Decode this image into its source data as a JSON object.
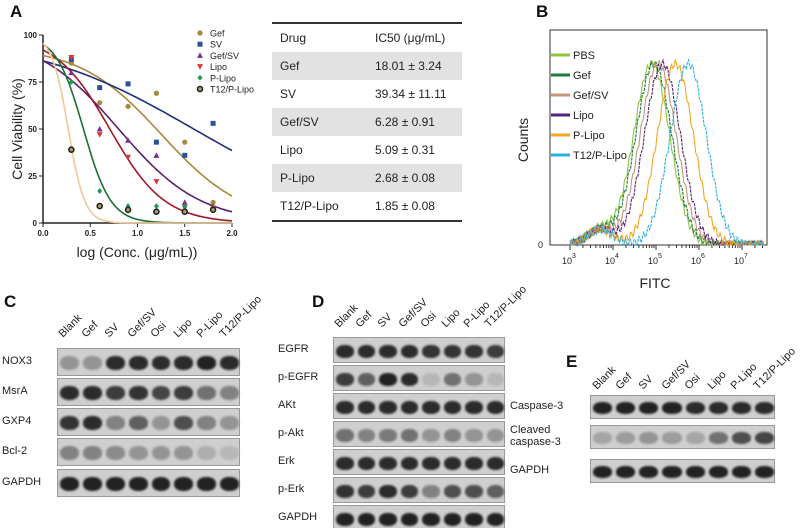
{
  "panels": {
    "a": "A",
    "b": "B",
    "c": "C",
    "d": "D",
    "e": "E"
  },
  "chart_data": [
    {
      "type": "scatter",
      "title": "",
      "xlabel": "log (Conc. (μg/mL))",
      "ylabel": "Cell Viability (%)",
      "xlim": [
        0,
        2
      ],
      "ylim": [
        0,
        100
      ],
      "xticks": [
        "0.0",
        "0.5",
        "1.0",
        "1.5",
        "2.0"
      ],
      "yticks": [
        "0",
        "25",
        "50",
        "75",
        "100"
      ],
      "legend": "top-right",
      "x": [
        0.3,
        0.6,
        0.9,
        1.2,
        1.5,
        1.8
      ],
      "series": [
        {
          "name": "Gef",
          "color": "#a8883a",
          "marker": "circle",
          "values": [
            85,
            64,
            62,
            69,
            43,
            11
          ],
          "fit": {
            "top": 94,
            "logIC50": 1.255,
            "hill": 1.0
          }
        },
        {
          "name": "SV",
          "color": "#2c4fa0",
          "curve": "#1f2f7a",
          "marker": "square",
          "values": [
            87,
            72,
            74,
            43,
            36,
            53
          ],
          "fit": {
            "top": 100,
            "logIC50": 1.595,
            "hill": 0.5
          }
        },
        {
          "name": "Gef/SV",
          "color": "#7a2f8a",
          "curve": "#5a2070",
          "marker": "triangle",
          "values": [
            80,
            50,
            44,
            36,
            11,
            9
          ],
          "fit": {
            "top": 100,
            "logIC50": 0.8,
            "hill": 1.0
          }
        },
        {
          "name": "Lipo",
          "color": "#d8353a",
          "curve": "#a01828",
          "marker": "triangle-down",
          "values": [
            88,
            47,
            35,
            22,
            8,
            8
          ],
          "fit": {
            "top": 100,
            "logIC50": 0.707,
            "hill": 1.5
          }
        },
        {
          "name": "P-Lipo",
          "color": "#1f9a50",
          "curve": "#1a7035",
          "marker": "diamond",
          "values": [
            75,
            17,
            9,
            9,
            9,
            8
          ],
          "fit": {
            "top": 100,
            "logIC50": 0.428,
            "hill": 3
          }
        },
        {
          "name": "T12/P-Lipo",
          "color": "#222222",
          "curve": "#f2c89a",
          "marker": "ring",
          "values": [
            39,
            9,
            7,
            6,
            6,
            7
          ],
          "fit": {
            "top": 100,
            "logIC50": 0.267,
            "hill": 5
          }
        }
      ]
    },
    {
      "type": "table",
      "headers": [
        "Drug",
        "IC50  (μg/mL)"
      ],
      "rows": [
        [
          "Gef",
          "18.01 ± 3.24"
        ],
        [
          "SV",
          "39.34 ± 11.11"
        ],
        [
          "Gef/SV",
          "6.28 ± 0.91"
        ],
        [
          "Lipo",
          "5.09 ± 0.31"
        ],
        [
          "P-Lipo",
          "2.68 ± 0.08"
        ],
        [
          "T12/P-Lipo",
          "1.85 ± 0.08"
        ]
      ]
    },
    {
      "type": "line",
      "title": "",
      "xlabel": "FITC",
      "ylabel": "Counts",
      "xscale": "log",
      "xticks": [
        "10",
        "10",
        "10",
        "10",
        "10"
      ],
      "xtick_exp": [
        "3",
        "4",
        "5",
        "6",
        "7"
      ],
      "y_zero": "0",
      "legend": "top-left",
      "series": [
        {
          "name": "PBS",
          "color": "#8cc63f",
          "peak_log10": 4.9
        },
        {
          "name": "Gef",
          "color": "#1e7a3e",
          "peak_log10": 4.95
        },
        {
          "name": "Gef/SV",
          "color": "#c4957a",
          "peak_log10": 5.05
        },
        {
          "name": "Lipo",
          "color": "#51237f",
          "peak_log10": 5.15
        },
        {
          "name": "P-Lipo",
          "color": "#f5a623",
          "peak_log10": 5.45
        },
        {
          "name": "T12/P-Lipo",
          "color": "#2aaee0",
          "peak_log10": 5.75
        }
      ]
    }
  ],
  "blots": {
    "c": {
      "lanes": [
        "Blank",
        "Gef",
        "SV",
        "Gef/SV",
        "Osi",
        "Lipo",
        "P-Lipo",
        "T12/P-Lipo"
      ],
      "rows": [
        {
          "label": "NOX3",
          "levels": [
            0.3,
            0.3,
            0.9,
            0.9,
            0.9,
            0.9,
            0.95,
            0.9
          ]
        },
        {
          "label": "MsrA",
          "levels": [
            0.9,
            0.9,
            0.8,
            0.85,
            0.75,
            0.8,
            0.5,
            0.4
          ]
        },
        {
          "label": "GXP4",
          "levels": [
            0.85,
            0.9,
            0.4,
            0.6,
            0.3,
            0.7,
            0.4,
            0.3
          ]
        },
        {
          "label": "Bcl-2",
          "levels": [
            0.4,
            0.4,
            0.35,
            0.3,
            0.3,
            0.3,
            0.15,
            0.1
          ]
        },
        {
          "label": "GAPDH",
          "levels": [
            0.95,
            0.95,
            0.95,
            0.95,
            0.95,
            0.95,
            0.95,
            0.95
          ]
        }
      ]
    },
    "d": {
      "lanes": [
        "Blank",
        "Gef",
        "SV",
        "Gef/SV",
        "Osi",
        "Lipo",
        "P-Lipo",
        "T12/P-Lipo"
      ],
      "rows": [
        {
          "label": "EGFR",
          "levels": [
            0.9,
            0.9,
            0.9,
            0.9,
            0.85,
            0.85,
            0.85,
            0.8
          ]
        },
        {
          "label": "p-EGFR",
          "levels": [
            0.8,
            0.6,
            0.95,
            0.9,
            0.1,
            0.5,
            0.3,
            0.1
          ]
        },
        {
          "label": "AKt",
          "levels": [
            0.9,
            0.9,
            0.9,
            0.9,
            0.9,
            0.9,
            0.9,
            0.9
          ]
        },
        {
          "label": "p-Akt",
          "levels": [
            0.5,
            0.4,
            0.45,
            0.5,
            0.3,
            0.4,
            0.3,
            0.3
          ]
        },
        {
          "label": "Erk",
          "levels": [
            0.9,
            0.9,
            0.9,
            0.9,
            0.9,
            0.9,
            0.9,
            0.9
          ]
        },
        {
          "label": "p-Erk",
          "levels": [
            0.85,
            0.8,
            0.9,
            0.8,
            0.4,
            0.7,
            0.7,
            0.6
          ]
        },
        {
          "label": "GAPDH",
          "levels": [
            0.95,
            0.95,
            0.95,
            0.95,
            0.95,
            0.95,
            0.95,
            0.95
          ]
        }
      ]
    },
    "e": {
      "lanes": [
        "Blank",
        "Gef",
        "SV",
        "Gef/SV",
        "Osi",
        "Lipo",
        "P-Lipo",
        "T12/P-Lipo"
      ],
      "rows": [
        {
          "label": "Caspase-3",
          "levels": [
            0.95,
            0.95,
            0.95,
            0.95,
            0.9,
            0.9,
            0.9,
            0.9
          ]
        },
        {
          "label": "Cleaved\ncaspase-3",
          "levels": [
            0.2,
            0.25,
            0.3,
            0.25,
            0.2,
            0.5,
            0.7,
            0.75
          ]
        },
        {
          "label": "GAPDH",
          "levels": [
            0.95,
            0.95,
            0.95,
            0.95,
            0.95,
            0.95,
            0.95,
            0.95
          ]
        }
      ]
    }
  }
}
